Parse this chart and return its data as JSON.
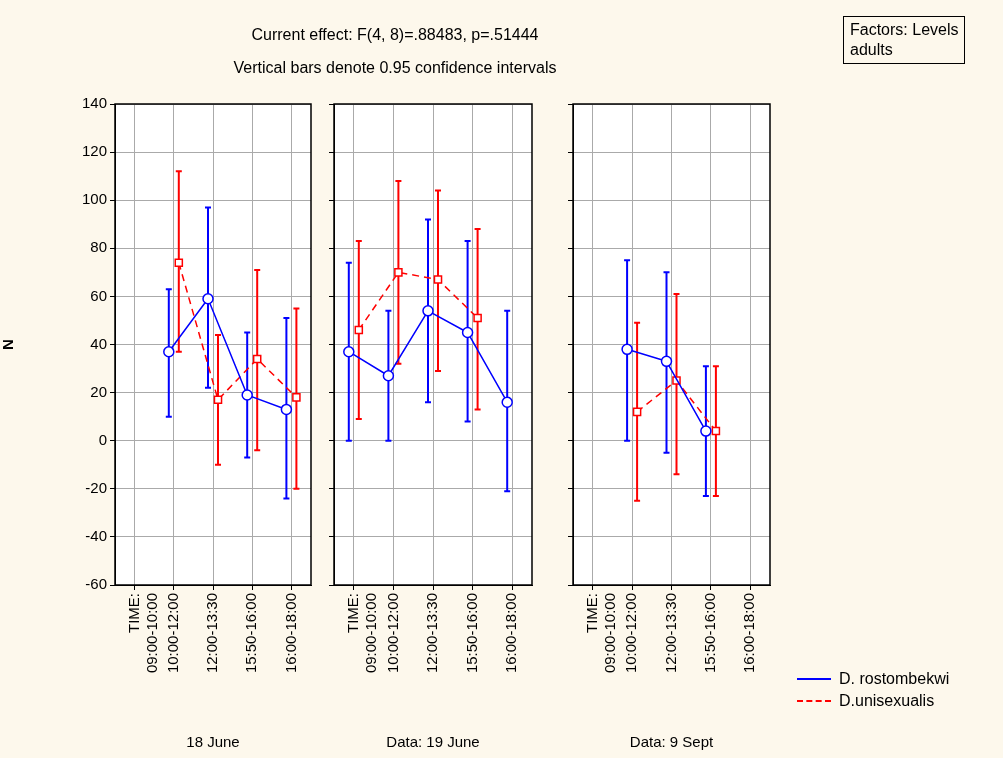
{
  "chart_data": [
    {
      "type": "line",
      "title": "Current effect: F(4, 8)=.88483, p=.51444",
      "subtitle": "Vertical bars denote 0.95 confidence intervals",
      "annotations": [
        "Factors: Levels\nadults"
      ],
      "ylabel": "N",
      "xlabel": "18 June",
      "categories": [
        "TIME: 09:00-10:00",
        "10:00-12:00",
        "12:00-13:30",
        "15:50-16:00",
        "16:00-18:00"
      ],
      "ylim": [
        -60,
        140
      ],
      "yticks": [
        -60,
        -40,
        -20,
        0,
        20,
        40,
        60,
        80,
        100,
        120,
        140
      ],
      "grid": true,
      "series": [
        {
          "color": "#0000ff",
          "marker": "circle",
          "line_style": "solid",
          "values": [
            null,
            37,
            59,
            19,
            13
          ],
          "errors": [
            null,
            [
              10,
              63
            ],
            [
              22,
              97
            ],
            [
              -7,
              45
            ],
            [
              -24,
              51
            ]
          ]
        },
        {
          "color": "#ff0000",
          "marker": "square",
          "line_style": "dashed",
          "values": [
            null,
            74,
            17,
            34,
            18
          ],
          "errors": [
            null,
            [
              37,
              112
            ],
            [
              -10,
              44
            ],
            [
              -4,
              71
            ],
            [
              -20,
              55
            ]
          ]
        }
      ]
    },
    {
      "type": "line",
      "xlabel": "Data: 19 June",
      "categories": [
        "TIME: 09:00-10:00",
        "10:00-12:00",
        "12:00-13:30",
        "15:50-16:00",
        "16:00-18:00"
      ],
      "ylim": [
        -60,
        140
      ],
      "yticks": [
        -60,
        -40,
        -20,
        0,
        20,
        40,
        60,
        80,
        100,
        120,
        140
      ],
      "grid": true,
      "tick_labels": "x",
      "series": [
        {
          "color": "#0000ff",
          "marker": "circle",
          "line_style": "solid",
          "values": [
            37,
            27,
            54,
            45,
            16
          ],
          "errors": [
            [
              0,
              74
            ],
            [
              0,
              54
            ],
            [
              16,
              92
            ],
            [
              8,
              83
            ],
            [
              -21,
              54
            ]
          ]
        },
        {
          "color": "#ff0000",
          "marker": "square",
          "line_style": "dashed",
          "values": [
            46,
            70,
            67,
            51,
            null
          ],
          "errors": [
            [
              9,
              83
            ],
            [
              32,
              108
            ],
            [
              29,
              104
            ],
            [
              13,
              88
            ],
            null
          ]
        }
      ]
    },
    {
      "type": "line",
      "xlabel": "Data: 9 Sept",
      "categories": [
        "TIME: 09:00-10:00",
        "10:00-12:00",
        "12:00-13:30",
        "15:50-16:00",
        "16:00-18:00"
      ],
      "ylim": [
        -60,
        140
      ],
      "yticks": [
        -60,
        -40,
        -20,
        0,
        20,
        40,
        60,
        80,
        100,
        120,
        140
      ],
      "grid": true,
      "tick_labels": "x",
      "legend": "right",
      "series": [
        {
          "name": "D. rostombekwi",
          "color": "#0000ff",
          "marker": "circle",
          "line_style": "solid",
          "values": [
            null,
            38,
            33,
            4,
            null
          ],
          "errors": [
            null,
            [
              0,
              75
            ],
            [
              -5,
              70
            ],
            [
              -23,
              31
            ],
            null
          ]
        },
        {
          "name": "D.unisexualis",
          "color": "#ff0000",
          "marker": "square",
          "line_style": "dashed",
          "values": [
            null,
            12,
            25,
            4,
            null
          ],
          "errors": [
            null,
            [
              -25,
              49
            ],
            [
              -14,
              61
            ],
            [
              -23,
              31
            ],
            null
          ]
        }
      ]
    }
  ]
}
